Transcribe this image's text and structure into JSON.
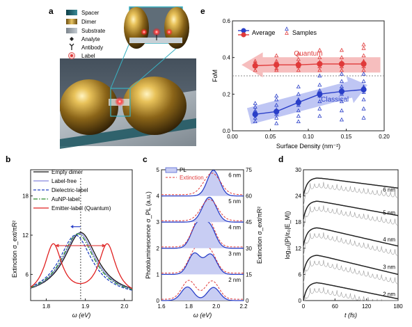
{
  "panels": {
    "a": {
      "letter": "a",
      "legend": [
        {
          "label": "Spacer",
          "color": "#1f5f6b",
          "icon": "spacer-swatch"
        },
        {
          "label": "Dimer",
          "color": "#c9a13a",
          "icon": "dimer-swatch"
        },
        {
          "label": "Substrate",
          "color": "#9aa3ad",
          "icon": "substrate-swatch"
        },
        {
          "label": "Analyte",
          "color": "#222222",
          "icon": "analyte-icon"
        },
        {
          "label": "Antibody",
          "color": "#222222",
          "icon": "antibody-icon"
        },
        {
          "label": "Label",
          "color": "#e06060",
          "icon": "label-icon"
        }
      ]
    },
    "e": {
      "letter": "e",
      "legend": [
        "Average",
        "Samples"
      ],
      "annotations": [
        "Quantum",
        "Classical"
      ]
    },
    "b": {
      "letter": "b"
    },
    "c": {
      "letter": "c"
    },
    "d": {
      "letter": "d"
    }
  },
  "colors": {
    "quantum": "#e03a3a",
    "classical": "#2a3fc8",
    "quantum_band": "#f3a8a8",
    "classical_band": "#a9b3f0",
    "pl_fill": "#c8cdf3",
    "emd_black": "#222222",
    "emd_grey": "#9a9a9a"
  },
  "chart_data": [
    {
      "id": "e",
      "type": "scatter",
      "xlabel": "Surface Density (nm⁻²)",
      "ylabel": "FoM",
      "xlim": [
        0,
        0.2
      ],
      "ylim": [
        0,
        0.6
      ],
      "xticks": [
        "0.00",
        "0.05",
        "0.10",
        "0.15",
        "0.20"
      ],
      "yticks": [
        "0.0",
        "0.2",
        "0.4",
        "0.6"
      ],
      "threshold": 0.3,
      "x": [
        0.03,
        0.058,
        0.087,
        0.115,
        0.144,
        0.173
      ],
      "series": [
        {
          "name": "Quantum",
          "values": [
            0.355,
            0.36,
            0.36,
            0.365,
            0.365,
            0.365
          ],
          "samples": [
            [
              0.33,
              0.35,
              0.36,
              0.37,
              0.38
            ],
            [
              0.33,
              0.34,
              0.36,
              0.38,
              0.41
            ],
            [
              0.33,
              0.35,
              0.37,
              0.39,
              0.42
            ],
            [
              0.33,
              0.35,
              0.37,
              0.4,
              0.44
            ],
            [
              0.33,
              0.35,
              0.37,
              0.4,
              0.44
            ],
            [
              0.33,
              0.35,
              0.38,
              0.41,
              0.45,
              0.47
            ]
          ]
        },
        {
          "name": "Classical",
          "values": [
            0.09,
            0.105,
            0.155,
            0.2,
            0.215,
            0.225
          ],
          "samples": [
            [
              0.05,
              0.07,
              0.09,
              0.1,
              0.11,
              0.13,
              0.15
            ],
            [
              0.04,
              0.07,
              0.09,
              0.11,
              0.14,
              0.17,
              0.19
            ],
            [
              0.05,
              0.08,
              0.11,
              0.14,
              0.17,
              0.2,
              0.24
            ],
            [
              0.08,
              0.12,
              0.16,
              0.19,
              0.22,
              0.25,
              0.3
            ],
            [
              0.06,
              0.11,
              0.16,
              0.2,
              0.24,
              0.27,
              0.31
            ],
            [
              0.07,
              0.12,
              0.17,
              0.21,
              0.24,
              0.27,
              0.31
            ]
          ]
        }
      ]
    },
    {
      "id": "b",
      "type": "line",
      "xlabel": "ω (eV)",
      "ylabel": "Extinction σ_ext/πR²",
      "xlim": [
        1.76,
        2.02
      ],
      "ylim": [
        2,
        22
      ],
      "xticks": [
        "1.8",
        "1.9",
        "2.0"
      ],
      "yticks": [
        "6",
        "12",
        "18"
      ],
      "vline": 1.888,
      "series": [
        {
          "name": "Empty dimer",
          "color": "#111111",
          "dash": "",
          "peaks": [
            [
              1.888,
              12.4,
              0.052
            ]
          ]
        },
        {
          "name": "Label-free",
          "color": "#8888dd",
          "dash": "",
          "peaks": [
            [
              1.884,
              12.3,
              0.052
            ]
          ]
        },
        {
          "name": "Dielectric-label",
          "color": "#2040c0",
          "dash": "4,2",
          "peaks": [
            [
              1.875,
              12.0,
              0.052
            ]
          ]
        },
        {
          "name": "AuNP-label",
          "color": "#2a8a2a",
          "dash": "6,2,1.5,2",
          "peaks": [
            [
              1.881,
              12.2,
              0.052
            ]
          ]
        },
        {
          "name": "Emitter-label (Quantum)",
          "color": "#e02020",
          "dash": "",
          "peaks": [
            [
              1.818,
              10.4,
              0.027
            ],
            [
              1.956,
              10.4,
              0.027
            ]
          ]
        }
      ],
      "baseline": 2.5
    },
    {
      "id": "c",
      "type": "line",
      "xlabel": "ω (eV)",
      "ylabel": "Photoluminescence σ_PL (a.u.)",
      "ylabel_right": "Extinction σ_ext/πR²",
      "xlim": [
        1.6,
        2.2
      ],
      "ylim": [
        0,
        5
      ],
      "ylim_right": [
        0,
        75
      ],
      "xticks": [
        "1.6",
        "1.8",
        "2.0",
        "2.2"
      ],
      "yticks": [
        "0",
        "1",
        "2",
        "3",
        "4",
        "5"
      ],
      "yticks_right": [
        "0",
        "15",
        "30",
        "45",
        "60",
        "75"
      ],
      "legend": [
        "PL",
        "Extinction"
      ],
      "traces": [
        {
          "label": "2 nm",
          "offset": 0,
          "pl_peaks": [
            [
              1.79,
              0.52,
              0.045
            ],
            [
              1.98,
              0.5,
              0.045
            ]
          ],
          "ext_peaks": [
            [
              1.8,
              0.72,
              0.05
            ],
            [
              1.97,
              0.7,
              0.05
            ]
          ]
        },
        {
          "label": "3 nm",
          "offset": 1,
          "pl_peaks": [
            [
              1.84,
              0.8,
              0.045
            ],
            [
              1.96,
              0.76,
              0.045
            ]
          ],
          "ext_peaks": [
            [
              1.85,
              0.88,
              0.05
            ],
            [
              1.95,
              0.84,
              0.05
            ]
          ]
        },
        {
          "label": "4 nm",
          "offset": 2,
          "pl_peaks": [
            [
              1.86,
              0.88,
              0.045
            ],
            [
              1.95,
              0.85,
              0.045
            ]
          ],
          "ext_peaks": [
            [
              1.87,
              0.9,
              0.05
            ],
            [
              1.945,
              0.86,
              0.05
            ]
          ]
        },
        {
          "label": "5 nm",
          "offset": 3,
          "pl_peaks": [
            [
              1.95,
              0.95,
              0.05
            ]
          ],
          "ext_peaks": [
            [
              1.95,
              0.82,
              0.06
            ]
          ]
        },
        {
          "label": "6 nm",
          "offset": 4,
          "pl_peaks": [
            [
              1.98,
              0.98,
              0.045
            ]
          ],
          "ext_peaks": [
            [
              1.97,
              0.82,
              0.06
            ]
          ]
        }
      ]
    },
    {
      "id": "d",
      "type": "line",
      "xlabel": "t (fs)",
      "ylabel": "log₁₀(|P|/ε₀|E_M|)",
      "xlim": [
        0,
        180
      ],
      "ylim": [
        0,
        30
      ],
      "xticks": [
        "0",
        "60",
        "120",
        "180"
      ],
      "yticks": [
        "0",
        "6",
        "12",
        "18",
        "24",
        "30"
      ],
      "traces": [
        {
          "label": "2 nm",
          "peak": 4.2,
          "end": 0.4
        },
        {
          "label": "3 nm",
          "peak": 10.5,
          "end": 6.0
        },
        {
          "label": "4 nm",
          "peak": 16.8,
          "end": 12.5
        },
        {
          "label": "5 nm",
          "peak": 22.9,
          "end": 19.5
        },
        {
          "label": "6 nm",
          "peak": 28.2,
          "end": 25.8
        }
      ]
    }
  ]
}
